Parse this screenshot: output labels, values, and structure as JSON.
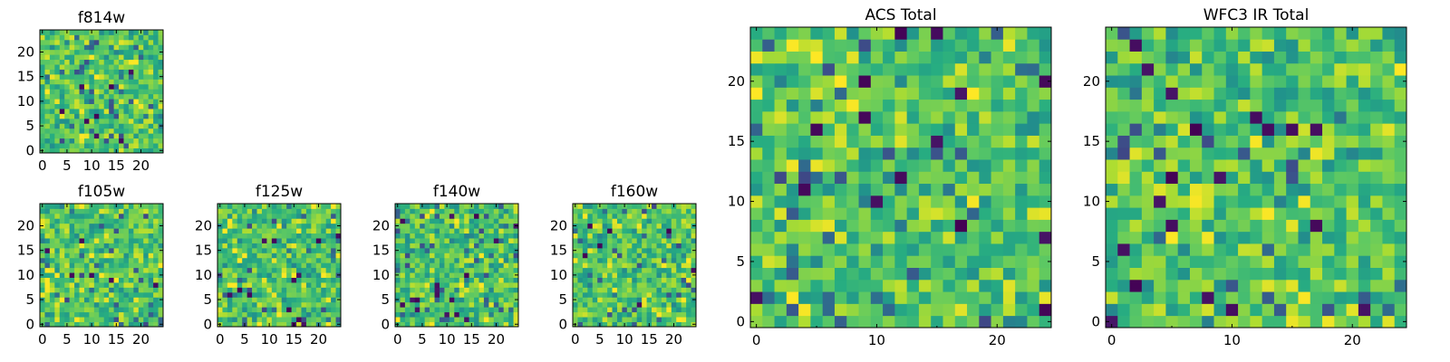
{
  "chart_data": [
    {
      "id": "f814w",
      "type": "heatmap",
      "title": "f814w",
      "grid_size": 25,
      "seed": 11,
      "variant": "small",
      "xticks": [
        0,
        5,
        10,
        15,
        20
      ],
      "yticks": [
        0,
        5,
        10,
        15,
        20
      ],
      "xlim": [
        0,
        24
      ],
      "ylim": [
        0,
        24
      ],
      "colormap": "viridis"
    },
    {
      "id": "f105w",
      "type": "heatmap",
      "title": "f105w",
      "grid_size": 25,
      "seed": 23,
      "variant": "small",
      "xticks": [
        0,
        5,
        10,
        15,
        20
      ],
      "yticks": [
        0,
        5,
        10,
        15,
        20
      ],
      "xlim": [
        0,
        24
      ],
      "ylim": [
        0,
        24
      ],
      "colormap": "viridis"
    },
    {
      "id": "f125w",
      "type": "heatmap",
      "title": "f125w",
      "grid_size": 25,
      "seed": 37,
      "variant": "small",
      "xticks": [
        0,
        5,
        10,
        15,
        20
      ],
      "yticks": [
        0,
        5,
        10,
        15,
        20
      ],
      "xlim": [
        0,
        24
      ],
      "ylim": [
        0,
        24
      ],
      "colormap": "viridis"
    },
    {
      "id": "f140w",
      "type": "heatmap",
      "title": "f140w",
      "grid_size": 25,
      "seed": 41,
      "variant": "small",
      "xticks": [
        0,
        5,
        10,
        15,
        20
      ],
      "yticks": [
        0,
        5,
        10,
        15,
        20
      ],
      "xlim": [
        0,
        24
      ],
      "ylim": [
        0,
        24
      ],
      "colormap": "viridis"
    },
    {
      "id": "f160w",
      "type": "heatmap",
      "title": "f160w",
      "grid_size": 25,
      "seed": 53,
      "variant": "small",
      "xticks": [
        0,
        5,
        10,
        15,
        20
      ],
      "yticks": [
        0,
        5,
        10,
        15,
        20
      ],
      "xlim": [
        0,
        24
      ],
      "ylim": [
        0,
        24
      ],
      "colormap": "viridis"
    },
    {
      "id": "acs-total",
      "type": "heatmap",
      "title": "ACS Total",
      "grid_size": 25,
      "seed": 67,
      "variant": "large",
      "xticks": [
        0,
        10,
        20
      ],
      "xticks_minor": [
        5,
        15
      ],
      "yticks": [
        0,
        5,
        10,
        15,
        20
      ],
      "xlim": [
        0,
        24
      ],
      "ylim": [
        0,
        24
      ],
      "colormap": "viridis"
    },
    {
      "id": "wfc3-ir-total",
      "type": "heatmap",
      "title": "WFC3 IR Total",
      "grid_size": 25,
      "seed": 79,
      "variant": "large",
      "xticks": [
        0,
        10,
        20
      ],
      "xticks_minor": [
        5,
        15
      ],
      "yticks": [
        0,
        5,
        10,
        15,
        20
      ],
      "xlim": [
        0,
        24
      ],
      "ylim": [
        0,
        24
      ],
      "colormap": "viridis"
    }
  ],
  "colors": {
    "viridis_dark": "#440154",
    "viridis_blue": "#3b528b",
    "viridis_teal": "#21918c",
    "viridis_green": "#5ec962",
    "viridis_yellow": "#fde725",
    "frame": "#000000",
    "background": "#ffffff"
  }
}
